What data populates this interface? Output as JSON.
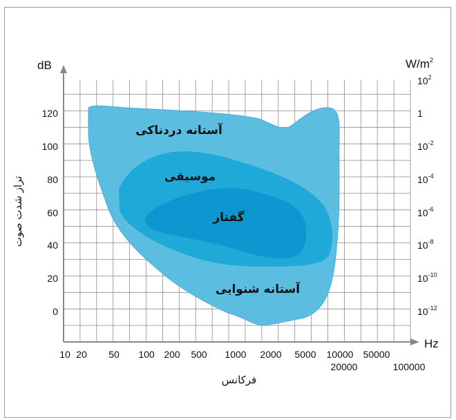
{
  "diagram": {
    "y_axis_left": {
      "unit": "dB",
      "title": "تراز شدت صوت",
      "ticks": [
        "120",
        "100",
        "80",
        "60",
        "40",
        "20",
        "0"
      ]
    },
    "y_axis_right": {
      "unit": "W/m",
      "unit_sup": "2",
      "ticks": [
        {
          "base": "10",
          "exp": "2"
        },
        {
          "base": "1",
          "exp": ""
        },
        {
          "base": "10",
          "exp": "-2"
        },
        {
          "base": "10",
          "exp": "-4"
        },
        {
          "base": "10",
          "exp": "-6"
        },
        {
          "base": "10",
          "exp": "-8"
        },
        {
          "base": "10",
          "exp": "-10"
        },
        {
          "base": "10",
          "exp": "-12"
        }
      ]
    },
    "x_axis": {
      "unit": "Hz",
      "title": "فرکانس",
      "ticks_upper": [
        "10",
        "20",
        "50",
        "100",
        "200",
        "500",
        "1000",
        "2000",
        "5000",
        "10000",
        "50000"
      ],
      "ticks_lower": [
        "20000",
        "100000"
      ]
    },
    "regions": {
      "pain_threshold": "آستانه دردناکی",
      "music": "موسیقی",
      "speech": "گفتار",
      "hearing_threshold": "آستانه شنوایی"
    },
    "colors": {
      "outer_region": "#5bbde0",
      "music_region": "#1fa9d8",
      "speech_region": "#0d96cf",
      "grid": "#8a8a8a",
      "axis": "#888888"
    }
  }
}
